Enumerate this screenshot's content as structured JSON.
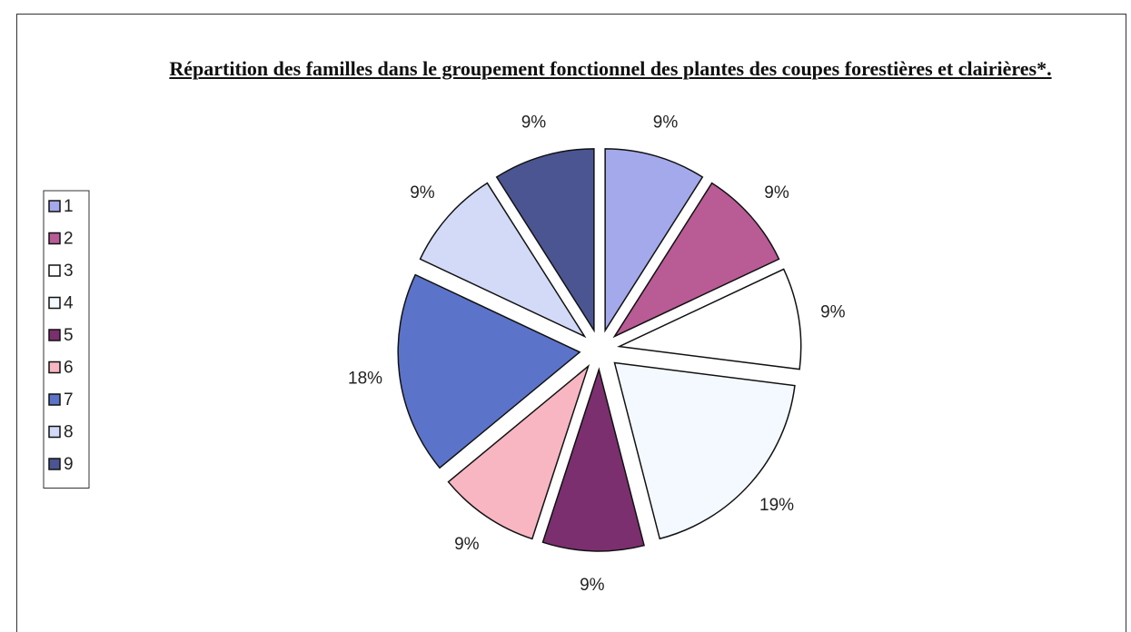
{
  "chart_data": {
    "type": "pie",
    "title": "Répartition des familles dans le groupement fonctionnel des plantes des coupes forestières et clairières*.",
    "categories": [
      "1",
      "2",
      "3",
      "4",
      "5",
      "6",
      "7",
      "8",
      "9"
    ],
    "values": [
      9,
      9,
      9,
      19,
      9,
      9,
      18,
      9,
      9
    ],
    "value_labels": [
      "9%",
      "9%",
      "9%",
      "19%",
      "9%",
      "9%",
      "18%",
      "9%",
      "9%"
    ],
    "colors": [
      "#a3a9ea",
      "#b95b95",
      "#ffffff",
      "#f4f9ff",
      "#7b2f6f",
      "#f8b6c2",
      "#5b73c9",
      "#d2daf8",
      "#4b5592"
    ],
    "legend": "left"
  }
}
